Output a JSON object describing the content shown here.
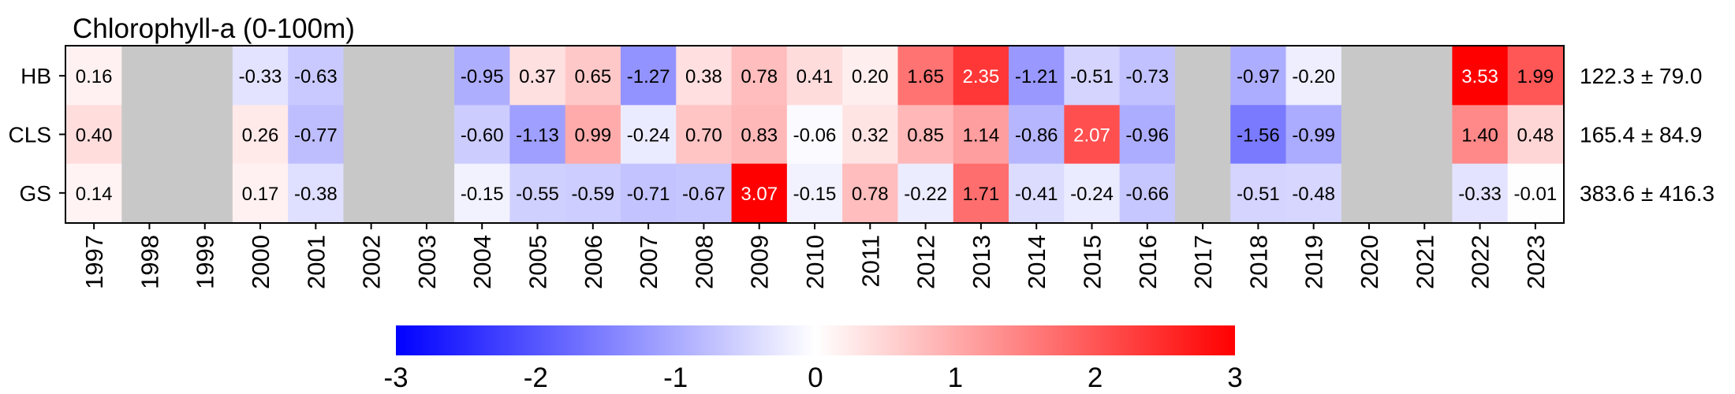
{
  "chart_data": {
    "type": "heatmap",
    "title": "Chlorophyll-a (0-100m)",
    "x_categories": [
      "1997",
      "1998",
      "1999",
      "2000",
      "2001",
      "2002",
      "2003",
      "2004",
      "2005",
      "2006",
      "2007",
      "2008",
      "2009",
      "2010",
      "2011",
      "2012",
      "2013",
      "2014",
      "2015",
      "2016",
      "2017",
      "2018",
      "2019",
      "2020",
      "2021",
      "2022",
      "2023"
    ],
    "rows": [
      {
        "name": "HB",
        "values": [
          0.16,
          null,
          null,
          -0.33,
          -0.63,
          null,
          null,
          -0.95,
          0.37,
          0.65,
          -1.27,
          0.38,
          0.78,
          0.41,
          0.2,
          1.65,
          2.35,
          -1.21,
          -0.51,
          -0.73,
          null,
          -0.97,
          -0.2,
          null,
          null,
          3.53,
          1.99
        ],
        "labels": [
          "0.16",
          "",
          "",
          "-0.33",
          "-0.63",
          "",
          "",
          "-0.95",
          "0.37",
          "0.65",
          "-1.27",
          "0.38",
          "0.78",
          "0.41",
          "0.20",
          "1.65",
          "2.35",
          "-1.21",
          "-0.51",
          "-0.73",
          "",
          "-0.97",
          "-0.20",
          "",
          "",
          "3.53",
          "1.99"
        ],
        "stat": "122.3 ± 79.0"
      },
      {
        "name": "CLS",
        "values": [
          0.4,
          null,
          null,
          0.26,
          -0.77,
          null,
          null,
          -0.6,
          -1.13,
          0.99,
          -0.24,
          0.7,
          0.83,
          -0.06,
          0.32,
          0.85,
          1.14,
          -0.86,
          2.07,
          -0.96,
          null,
          -1.56,
          -0.99,
          null,
          null,
          1.4,
          0.48
        ],
        "labels": [
          "0.40",
          "",
          "",
          "0.26",
          "-0.77",
          "",
          "",
          "-0.60",
          "-1.13",
          "0.99",
          "-0.24",
          "0.70",
          "0.83",
          "-0.06",
          "0.32",
          "0.85",
          "1.14",
          "-0.86",
          "2.07",
          "-0.96",
          "",
          "-1.56",
          "-0.99",
          "",
          "",
          "1.40",
          "0.48"
        ],
        "stat": "165.4 ± 84.9"
      },
      {
        "name": "GS",
        "values": [
          0.14,
          null,
          null,
          0.17,
          -0.38,
          null,
          null,
          -0.15,
          -0.55,
          -0.59,
          -0.71,
          -0.67,
          3.07,
          -0.15,
          0.78,
          -0.22,
          1.71,
          -0.41,
          -0.24,
          -0.66,
          null,
          -0.51,
          -0.48,
          null,
          null,
          -0.33,
          -0.01
        ],
        "labels": [
          "0.14",
          "",
          "",
          "0.17",
          "-0.38",
          "",
          "",
          "-0.15",
          "-0.55",
          "-0.59",
          "-0.71",
          "-0.67",
          "3.07",
          "-0.15",
          "0.78",
          "-0.22",
          "1.71",
          "-0.41",
          "-0.24",
          "-0.66",
          "",
          "-0.51",
          "-0.48",
          "",
          "",
          "-0.33",
          "-0.01"
        ],
        "stat": "383.6 ± 416.3"
      }
    ],
    "colorbar": {
      "range": [
        -3,
        3
      ],
      "ticks": [
        -3,
        -2,
        -1,
        0,
        1,
        2,
        3
      ],
      "tick_labels": [
        "-3",
        "-2",
        "-1",
        "0",
        "1",
        "2",
        "3"
      ],
      "low_color": "#0000ff",
      "mid_color": "#ffffff",
      "high_color": "#ff0000"
    },
    "missing_color": "#c8c8c8",
    "grid": false,
    "legend": "bottom"
  }
}
